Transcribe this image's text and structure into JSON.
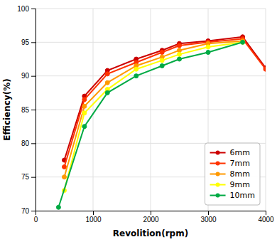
{
  "chart_data": {
    "type": "line",
    "xlabel": "Revolition(rpm)",
    "ylabel": "Efficiency(%)",
    "series": [
      {
        "name": "6mm",
        "color": "#cc0000",
        "x": [
          500,
          850,
          1250,
          1750,
          2200,
          2500,
          3000,
          3600,
          4000
        ],
        "values": [
          77.5,
          87.0,
          90.8,
          92.5,
          93.8,
          94.8,
          95.2,
          95.8,
          91.2
        ]
      },
      {
        "name": "7mm",
        "color": "#ff3300",
        "x": [
          500,
          850,
          1250,
          1750,
          2200,
          2500,
          3000,
          3600,
          4000
        ],
        "values": [
          76.5,
          86.5,
          90.3,
          92.0,
          93.5,
          94.5,
          95.0,
          95.5,
          91.0
        ]
      },
      {
        "name": "8mm",
        "color": "#ff9900",
        "x": [
          500,
          850,
          1250,
          1750,
          2200,
          2500,
          3000,
          3600
        ],
        "values": [
          75.0,
          85.5,
          89.0,
          91.5,
          92.8,
          93.8,
          94.8,
          95.2
        ]
      },
      {
        "name": "9mm",
        "color": "#ffff00",
        "x": [
          500,
          850,
          1250,
          1750,
          2200,
          2500,
          3000,
          3600
        ],
        "values": [
          73.0,
          84.5,
          88.0,
          91.0,
          92.3,
          93.2,
          94.3,
          95.0
        ]
      },
      {
        "name": "10mm",
        "color": "#00aa44",
        "x": [
          400,
          850,
          1250,
          1750,
          2200,
          2500,
          3000,
          3600
        ],
        "values": [
          70.5,
          82.5,
          87.5,
          90.0,
          91.5,
          92.5,
          93.5,
          95.0
        ]
      }
    ],
    "xlim": [
      0,
      4000
    ],
    "ylim": [
      70,
      100
    ],
    "xticks": [
      0,
      1000,
      2000,
      3000,
      4000
    ],
    "yticks": [
      70,
      75,
      80,
      85,
      90,
      95,
      100
    ],
    "grid": true,
    "legend": "lower right",
    "marker": "circle"
  }
}
